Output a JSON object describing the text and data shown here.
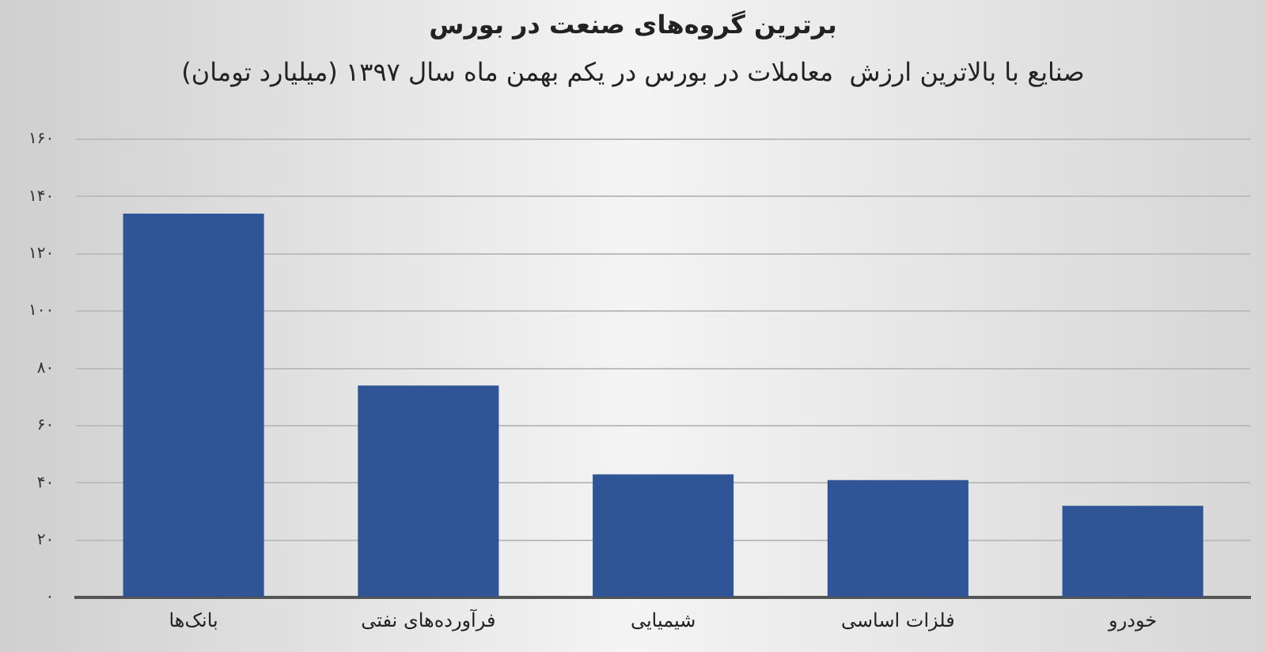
{
  "chart_data": {
    "type": "bar",
    "title": "برترین گروه‌های صنعت در بورس",
    "subtitle": "صنایع با بالاترین ارزش  معاملات در بورس در یکم بهمن ماه سال ۱۳۹۷ (میلیارد تومان)",
    "categories": [
      "بانک‌ها",
      "فرآورده‌های نفتی",
      "شیمیایی",
      "فلزات اساسی",
      "خودرو"
    ],
    "values": [
      134,
      74,
      43,
      41,
      32
    ],
    "color": "#2f5597",
    "ylim": [
      0,
      160
    ],
    "yticks": [
      {
        "value": 0,
        "label": "۰"
      },
      {
        "value": 20,
        "label": "۲۰"
      },
      {
        "value": 40,
        "label": "۴۰"
      },
      {
        "value": 60,
        "label": "۶۰"
      },
      {
        "value": 80,
        "label": "۸۰"
      },
      {
        "value": 100,
        "label": "۱۰۰"
      },
      {
        "value": 120,
        "label": "۱۲۰"
      },
      {
        "value": 140,
        "label": "۱۴۰"
      },
      {
        "value": 160,
        "label": "۱۶۰"
      }
    ],
    "grid": "y"
  }
}
